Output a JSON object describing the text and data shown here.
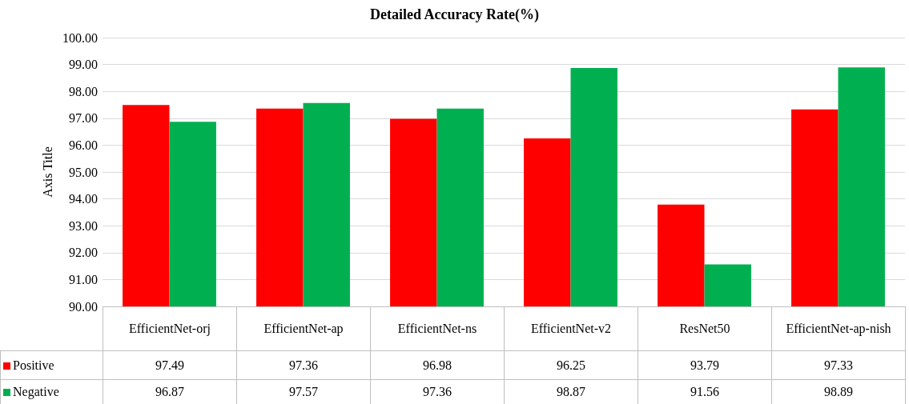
{
  "chart_data": {
    "type": "bar",
    "title": "Detailed Accuracy Rate(%)",
    "ylabel": "Axis Title",
    "categories": [
      "EfficientNet-orj",
      "EfficientNet-ap",
      "EfficientNet-ns",
      "EfficientNet-v2",
      "ResNet50",
      "EfficientNet-ap-nish"
    ],
    "series": [
      {
        "name": "Positive",
        "color": "#ff0000",
        "values": [
          97.49,
          97.36,
          96.98,
          96.25,
          93.79,
          97.33
        ]
      },
      {
        "name": "Negative",
        "color": "#00b050",
        "values": [
          96.87,
          97.57,
          97.36,
          98.87,
          91.56,
          98.89
        ]
      }
    ],
    "ylim": [
      90,
      100
    ],
    "yticks": [
      {
        "value": 90,
        "label": "90.00"
      },
      {
        "value": 91,
        "label": "91.00"
      },
      {
        "value": 92,
        "label": "92.00"
      },
      {
        "value": 93,
        "label": "93.00"
      },
      {
        "value": 94,
        "label": "94.00"
      },
      {
        "value": 95,
        "label": "95.00"
      },
      {
        "value": 96,
        "label": "96.00"
      },
      {
        "value": 97,
        "label": "97.00"
      },
      {
        "value": 98,
        "label": "98.00"
      },
      {
        "value": 99,
        "label": "99.00"
      },
      {
        "value": 100,
        "label": "100.00"
      }
    ],
    "grid": "y",
    "legend": "bottom",
    "data_labels": true
  }
}
